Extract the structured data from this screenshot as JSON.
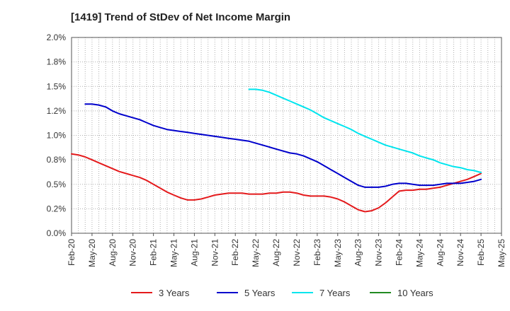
{
  "chart_data": {
    "type": "line",
    "title": "[1419]  Trend of StDev of Net Income Margin",
    "xlabel": "",
    "ylabel": "",
    "ylim": [
      0,
      2.0
    ],
    "y_ticks": [
      "0.0%",
      "0.2%",
      "0.5%",
      "0.8%",
      "1.0%",
      "1.2%",
      "1.5%",
      "1.8%",
      "2.0%"
    ],
    "x_ticks": [
      "Feb-20",
      "May-20",
      "Aug-20",
      "Nov-20",
      "Feb-21",
      "May-21",
      "Aug-21",
      "Nov-21",
      "Feb-22",
      "May-22",
      "Aug-22",
      "Nov-22",
      "Feb-23",
      "May-23",
      "Aug-23",
      "Nov-23",
      "Feb-24",
      "May-24",
      "Aug-24",
      "Nov-24",
      "Feb-25",
      "May-25"
    ],
    "grid": true,
    "legend_position": "bottom",
    "series": [
      {
        "name": "3 Years",
        "color": "#e41a1c",
        "points": [
          [
            "Feb-20",
            0.81
          ],
          [
            "Mar-20",
            0.8
          ],
          [
            "Apr-20",
            0.78
          ],
          [
            "May-20",
            0.75
          ],
          [
            "Jun-20",
            0.72
          ],
          [
            "Jul-20",
            0.69
          ],
          [
            "Aug-20",
            0.66
          ],
          [
            "Sep-20",
            0.63
          ],
          [
            "Oct-20",
            0.61
          ],
          [
            "Nov-20",
            0.59
          ],
          [
            "Dec-20",
            0.57
          ],
          [
            "Jan-21",
            0.54
          ],
          [
            "Feb-21",
            0.5
          ],
          [
            "Mar-21",
            0.46
          ],
          [
            "Apr-21",
            0.42
          ],
          [
            "May-21",
            0.39
          ],
          [
            "Jun-21",
            0.36
          ],
          [
            "Jul-21",
            0.34
          ],
          [
            "Aug-21",
            0.34
          ],
          [
            "Sep-21",
            0.35
          ],
          [
            "Oct-21",
            0.37
          ],
          [
            "Nov-21",
            0.39
          ],
          [
            "Dec-21",
            0.4
          ],
          [
            "Jan-22",
            0.41
          ],
          [
            "Feb-22",
            0.41
          ],
          [
            "Mar-22",
            0.41
          ],
          [
            "Apr-22",
            0.4
          ],
          [
            "May-22",
            0.4
          ],
          [
            "Jun-22",
            0.4
          ],
          [
            "Jul-22",
            0.41
          ],
          [
            "Aug-22",
            0.41
          ],
          [
            "Sep-22",
            0.42
          ],
          [
            "Oct-22",
            0.42
          ],
          [
            "Nov-22",
            0.41
          ],
          [
            "Dec-22",
            0.39
          ],
          [
            "Jan-23",
            0.38
          ],
          [
            "Feb-23",
            0.38
          ],
          [
            "Mar-23",
            0.38
          ],
          [
            "Apr-23",
            0.37
          ],
          [
            "May-23",
            0.35
          ],
          [
            "Jun-23",
            0.32
          ],
          [
            "Jul-23",
            0.28
          ],
          [
            "Aug-23",
            0.24
          ],
          [
            "Sep-23",
            0.22
          ],
          [
            "Oct-23",
            0.23
          ],
          [
            "Nov-23",
            0.26
          ],
          [
            "Dec-23",
            0.31
          ],
          [
            "Jan-24",
            0.37
          ],
          [
            "Feb-24",
            0.43
          ],
          [
            "Mar-24",
            0.44
          ],
          [
            "Apr-24",
            0.44
          ],
          [
            "May-24",
            0.45
          ],
          [
            "Jun-24",
            0.45
          ],
          [
            "Jul-24",
            0.46
          ],
          [
            "Aug-24",
            0.47
          ],
          [
            "Sep-24",
            0.49
          ],
          [
            "Oct-24",
            0.51
          ],
          [
            "Nov-24",
            0.53
          ],
          [
            "Dec-24",
            0.55
          ],
          [
            "Jan-25",
            0.58
          ],
          [
            "Feb-25",
            0.61
          ]
        ]
      },
      {
        "name": "5 Years",
        "color": "#0000cc",
        "points": [
          [
            "Apr-20",
            1.32
          ],
          [
            "May-20",
            1.32
          ],
          [
            "Jun-20",
            1.31
          ],
          [
            "Jul-20",
            1.29
          ],
          [
            "Aug-20",
            1.25
          ],
          [
            "Sep-20",
            1.22
          ],
          [
            "Oct-20",
            1.2
          ],
          [
            "Nov-20",
            1.18
          ],
          [
            "Dec-20",
            1.16
          ],
          [
            "Jan-21",
            1.13
          ],
          [
            "Feb-21",
            1.1
          ],
          [
            "Mar-21",
            1.08
          ],
          [
            "Apr-21",
            1.06
          ],
          [
            "May-21",
            1.05
          ],
          [
            "Jun-21",
            1.04
          ],
          [
            "Jul-21",
            1.03
          ],
          [
            "Aug-21",
            1.02
          ],
          [
            "Sep-21",
            1.01
          ],
          [
            "Oct-21",
            1.0
          ],
          [
            "Nov-21",
            0.99
          ],
          [
            "Dec-21",
            0.98
          ],
          [
            "Jan-22",
            0.97
          ],
          [
            "Feb-22",
            0.96
          ],
          [
            "Mar-22",
            0.95
          ],
          [
            "Apr-22",
            0.94
          ],
          [
            "May-22",
            0.92
          ],
          [
            "Jun-22",
            0.9
          ],
          [
            "Jul-22",
            0.88
          ],
          [
            "Aug-22",
            0.86
          ],
          [
            "Sep-22",
            0.84
          ],
          [
            "Oct-22",
            0.82
          ],
          [
            "Nov-22",
            0.81
          ],
          [
            "Dec-22",
            0.79
          ],
          [
            "Jan-23",
            0.76
          ],
          [
            "Feb-23",
            0.73
          ],
          [
            "Mar-23",
            0.69
          ],
          [
            "Apr-23",
            0.65
          ],
          [
            "May-23",
            0.61
          ],
          [
            "Jun-23",
            0.57
          ],
          [
            "Jul-23",
            0.53
          ],
          [
            "Aug-23",
            0.49
          ],
          [
            "Sep-23",
            0.47
          ],
          [
            "Oct-23",
            0.47
          ],
          [
            "Nov-23",
            0.47
          ],
          [
            "Dec-23",
            0.48
          ],
          [
            "Jan-24",
            0.5
          ],
          [
            "Feb-24",
            0.51
          ],
          [
            "Mar-24",
            0.51
          ],
          [
            "Apr-24",
            0.5
          ],
          [
            "May-24",
            0.49
          ],
          [
            "Jun-24",
            0.49
          ],
          [
            "Jul-24",
            0.49
          ],
          [
            "Aug-24",
            0.5
          ],
          [
            "Sep-24",
            0.51
          ],
          [
            "Oct-24",
            0.51
          ],
          [
            "Nov-24",
            0.51
          ],
          [
            "Dec-24",
            0.52
          ],
          [
            "Jan-25",
            0.53
          ],
          [
            "Feb-25",
            0.55
          ]
        ]
      },
      {
        "name": "7 Years",
        "color": "#00e5ee",
        "points": [
          [
            "Apr-22",
            1.47
          ],
          [
            "May-22",
            1.47
          ],
          [
            "Jun-22",
            1.46
          ],
          [
            "Jul-22",
            1.44
          ],
          [
            "Aug-22",
            1.41
          ],
          [
            "Sep-22",
            1.38
          ],
          [
            "Oct-22",
            1.35
          ],
          [
            "Nov-22",
            1.32
          ],
          [
            "Dec-22",
            1.29
          ],
          [
            "Jan-23",
            1.26
          ],
          [
            "Feb-23",
            1.22
          ],
          [
            "Mar-23",
            1.18
          ],
          [
            "Apr-23",
            1.15
          ],
          [
            "May-23",
            1.12
          ],
          [
            "Jun-23",
            1.09
          ],
          [
            "Jul-23",
            1.06
          ],
          [
            "Aug-23",
            1.02
          ],
          [
            "Sep-23",
            0.99
          ],
          [
            "Oct-23",
            0.96
          ],
          [
            "Nov-23",
            0.93
          ],
          [
            "Dec-23",
            0.9
          ],
          [
            "Jan-24",
            0.88
          ],
          [
            "Feb-24",
            0.86
          ],
          [
            "Mar-24",
            0.84
          ],
          [
            "Apr-24",
            0.82
          ],
          [
            "May-24",
            0.79
          ],
          [
            "Jun-24",
            0.77
          ],
          [
            "Jul-24",
            0.75
          ],
          [
            "Aug-24",
            0.72
          ],
          [
            "Sep-24",
            0.7
          ],
          [
            "Oct-24",
            0.68
          ],
          [
            "Nov-24",
            0.67
          ],
          [
            "Dec-24",
            0.65
          ],
          [
            "Jan-25",
            0.64
          ],
          [
            "Feb-25",
            0.62
          ]
        ]
      },
      {
        "name": "10 Years",
        "color": "#228b22",
        "points": []
      }
    ]
  }
}
